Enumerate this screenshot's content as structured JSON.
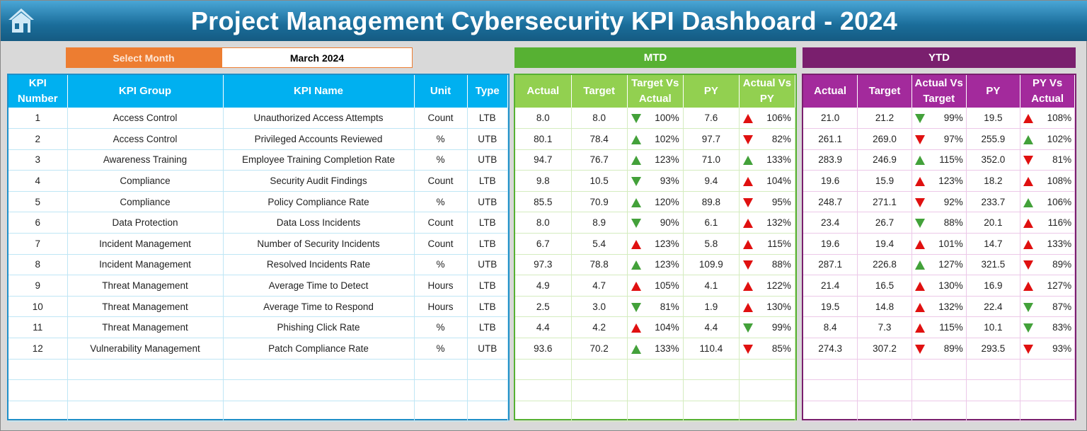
{
  "title": "Project Management Cybersecurity KPI Dashboard - 2024",
  "select_month": {
    "label": "Select Month",
    "value": "March 2024"
  },
  "colors": {
    "title": "#1a6d9a",
    "left_header": "#00b0f0",
    "mtd": "#57b133",
    "mtd_header": "#92d050",
    "ytd": "#7a1f6e",
    "ytd_header": "#a32a9c",
    "select": "#ed7d31",
    "green": "#43a13a",
    "red": "#e01010"
  },
  "mtd_label": "MTD",
  "ytd_label": "YTD",
  "left_headers": [
    "KPI Number",
    "KPI Group",
    "KPI Name",
    "Unit",
    "Type"
  ],
  "mtd_headers": [
    "Actual",
    "Target",
    "Target Vs Actual",
    "PY",
    "Actual Vs PY"
  ],
  "ytd_headers": [
    "Actual",
    "Target",
    "Actual Vs Target",
    "PY",
    "PY Vs Actual"
  ],
  "rows": [
    {
      "num": "1",
      "group": "Access Control",
      "name": "Unauthorized Access Attempts",
      "unit": "Count",
      "type": "LTB",
      "mtd": [
        "8.0",
        "8.0",
        {
          "dir": "down",
          "color": "green",
          "v": "100%"
        },
        "7.6",
        {
          "dir": "up",
          "color": "red",
          "v": "106%"
        }
      ],
      "ytd": [
        "21.0",
        "21.2",
        {
          "dir": "down",
          "color": "green",
          "v": "99%"
        },
        "19.5",
        {
          "dir": "up",
          "color": "red",
          "v": "108%"
        }
      ]
    },
    {
      "num": "2",
      "group": "Access Control",
      "name": "Privileged Accounts Reviewed",
      "unit": "%",
      "type": "UTB",
      "mtd": [
        "80.1",
        "78.4",
        {
          "dir": "up",
          "color": "green",
          "v": "102%"
        },
        "97.7",
        {
          "dir": "down",
          "color": "red",
          "v": "82%"
        }
      ],
      "ytd": [
        "261.1",
        "269.0",
        {
          "dir": "down",
          "color": "red",
          "v": "97%"
        },
        "255.9",
        {
          "dir": "up",
          "color": "green",
          "v": "102%"
        }
      ]
    },
    {
      "num": "3",
      "group": "Awareness Training",
      "name": "Employee Training Completion Rate",
      "unit": "%",
      "type": "UTB",
      "mtd": [
        "94.7",
        "76.7",
        {
          "dir": "up",
          "color": "green",
          "v": "123%"
        },
        "71.0",
        {
          "dir": "up",
          "color": "green",
          "v": "133%"
        }
      ],
      "ytd": [
        "283.9",
        "246.9",
        {
          "dir": "up",
          "color": "green",
          "v": "115%"
        },
        "352.0",
        {
          "dir": "down",
          "color": "red",
          "v": "81%"
        }
      ]
    },
    {
      "num": "4",
      "group": "Compliance",
      "name": "Security Audit Findings",
      "unit": "Count",
      "type": "LTB",
      "mtd": [
        "9.8",
        "10.5",
        {
          "dir": "down",
          "color": "green",
          "v": "93%"
        },
        "9.4",
        {
          "dir": "up",
          "color": "red",
          "v": "104%"
        }
      ],
      "ytd": [
        "19.6",
        "15.9",
        {
          "dir": "up",
          "color": "red",
          "v": "123%"
        },
        "18.2",
        {
          "dir": "up",
          "color": "red",
          "v": "108%"
        }
      ]
    },
    {
      "num": "5",
      "group": "Compliance",
      "name": "Policy Compliance Rate",
      "unit": "%",
      "type": "UTB",
      "mtd": [
        "85.5",
        "70.9",
        {
          "dir": "up",
          "color": "green",
          "v": "120%"
        },
        "89.8",
        {
          "dir": "down",
          "color": "red",
          "v": "95%"
        }
      ],
      "ytd": [
        "248.7",
        "271.1",
        {
          "dir": "down",
          "color": "red",
          "v": "92%"
        },
        "233.7",
        {
          "dir": "up",
          "color": "green",
          "v": "106%"
        }
      ]
    },
    {
      "num": "6",
      "group": "Data Protection",
      "name": "Data Loss Incidents",
      "unit": "Count",
      "type": "LTB",
      "mtd": [
        "8.0",
        "8.9",
        {
          "dir": "down",
          "color": "green",
          "v": "90%"
        },
        "6.1",
        {
          "dir": "up",
          "color": "red",
          "v": "132%"
        }
      ],
      "ytd": [
        "23.4",
        "26.7",
        {
          "dir": "down",
          "color": "green",
          "v": "88%"
        },
        "20.1",
        {
          "dir": "up",
          "color": "red",
          "v": "116%"
        }
      ]
    },
    {
      "num": "7",
      "group": "Incident Management",
      "name": "Number of Security Incidents",
      "unit": "Count",
      "type": "LTB",
      "mtd": [
        "6.7",
        "5.4",
        {
          "dir": "up",
          "color": "red",
          "v": "123%"
        },
        "5.8",
        {
          "dir": "up",
          "color": "red",
          "v": "115%"
        }
      ],
      "ytd": [
        "19.6",
        "19.4",
        {
          "dir": "up",
          "color": "red",
          "v": "101%"
        },
        "14.7",
        {
          "dir": "up",
          "color": "red",
          "v": "133%"
        }
      ]
    },
    {
      "num": "8",
      "group": "Incident Management",
      "name": "Resolved Incidents Rate",
      "unit": "%",
      "type": "UTB",
      "mtd": [
        "97.3",
        "78.8",
        {
          "dir": "up",
          "color": "green",
          "v": "123%"
        },
        "109.9",
        {
          "dir": "down",
          "color": "red",
          "v": "88%"
        }
      ],
      "ytd": [
        "287.1",
        "226.8",
        {
          "dir": "up",
          "color": "green",
          "v": "127%"
        },
        "321.5",
        {
          "dir": "down",
          "color": "red",
          "v": "89%"
        }
      ]
    },
    {
      "num": "9",
      "group": "Threat Management",
      "name": "Average Time to Detect",
      "unit": "Hours",
      "type": "LTB",
      "mtd": [
        "4.9",
        "4.7",
        {
          "dir": "up",
          "color": "red",
          "v": "105%"
        },
        "4.1",
        {
          "dir": "up",
          "color": "red",
          "v": "122%"
        }
      ],
      "ytd": [
        "21.4",
        "16.5",
        {
          "dir": "up",
          "color": "red",
          "v": "130%"
        },
        "16.9",
        {
          "dir": "up",
          "color": "red",
          "v": "127%"
        }
      ]
    },
    {
      "num": "10",
      "group": "Threat Management",
      "name": "Average Time to Respond",
      "unit": "Hours",
      "type": "LTB",
      "mtd": [
        "2.5",
        "3.0",
        {
          "dir": "down",
          "color": "green",
          "v": "81%"
        },
        "1.9",
        {
          "dir": "up",
          "color": "red",
          "v": "130%"
        }
      ],
      "ytd": [
        "19.5",
        "14.8",
        {
          "dir": "up",
          "color": "red",
          "v": "132%"
        },
        "22.4",
        {
          "dir": "down",
          "color": "green",
          "v": "87%"
        }
      ]
    },
    {
      "num": "11",
      "group": "Threat Management",
      "name": "Phishing Click Rate",
      "unit": "%",
      "type": "LTB",
      "mtd": [
        "4.4",
        "4.2",
        {
          "dir": "up",
          "color": "red",
          "v": "104%"
        },
        "4.4",
        {
          "dir": "down",
          "color": "green",
          "v": "99%"
        }
      ],
      "ytd": [
        "8.4",
        "7.3",
        {
          "dir": "up",
          "color": "red",
          "v": "115%"
        },
        "10.1",
        {
          "dir": "down",
          "color": "green",
          "v": "83%"
        }
      ]
    },
    {
      "num": "12",
      "group": "Vulnerability Management",
      "name": "Patch Compliance Rate",
      "unit": "%",
      "type": "UTB",
      "mtd": [
        "93.6",
        "70.2",
        {
          "dir": "up",
          "color": "green",
          "v": "133%"
        },
        "110.4",
        {
          "dir": "down",
          "color": "red",
          "v": "85%"
        }
      ],
      "ytd": [
        "274.3",
        "307.2",
        {
          "dir": "down",
          "color": "red",
          "v": "89%"
        },
        "293.5",
        {
          "dir": "down",
          "color": "red",
          "v": "93%"
        }
      ]
    }
  ]
}
